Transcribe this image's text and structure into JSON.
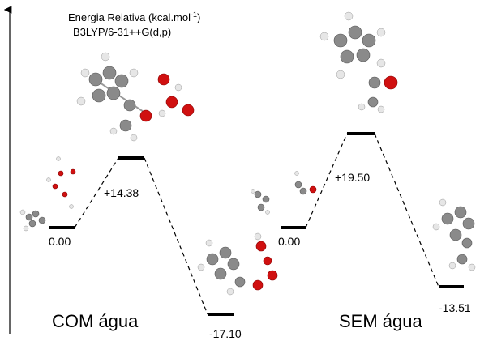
{
  "header": {
    "title_parts": [
      "Energia Relativa (kcal.mol",
      "-1",
      ")"
    ],
    "method": "B3LYP/6-31++G(d,p)"
  },
  "profiles": [
    {
      "label": "COM água",
      "levels": [
        "0.00",
        "+14.38",
        "-17.10"
      ]
    },
    {
      "label": "SEM água",
      "levels": [
        "0.00",
        "+19.50",
        "-13.51"
      ]
    }
  ]
}
